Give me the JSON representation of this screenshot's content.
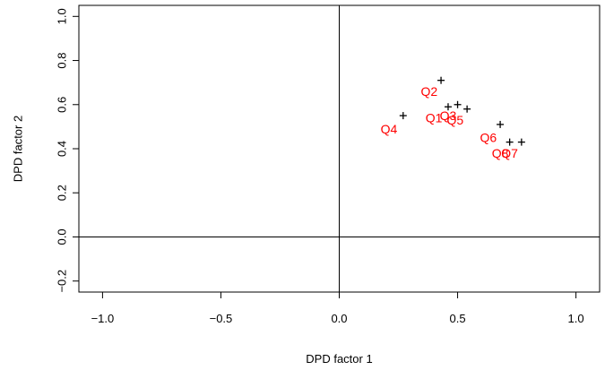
{
  "chart_data": {
    "type": "scatter",
    "title": "",
    "xlabel": "DPD factor 1",
    "ylabel": "DPD factor 2",
    "xlim": [
      -1.1,
      1.1
    ],
    "ylim": [
      -0.25,
      1.05
    ],
    "x_ticks": [
      -1.0,
      -0.5,
      0.0,
      0.5,
      1.0
    ],
    "x_tick_labels": [
      "−1.0",
      "−0.5",
      "0.0",
      "0.5",
      "1.0"
    ],
    "y_ticks": [
      -0.2,
      0.0,
      0.2,
      0.4,
      0.6,
      0.8,
      1.0
    ],
    "y_tick_labels": [
      "−0.2",
      "0.0",
      "0.2",
      "0.4",
      "0.6",
      "0.8",
      "1.0"
    ],
    "reference_lines": {
      "x": 0,
      "y": 0
    },
    "grid": false,
    "points": [
      {
        "x": 0.43,
        "y": 0.71
      },
      {
        "x": 0.46,
        "y": 0.59
      },
      {
        "x": 0.5,
        "y": 0.6
      },
      {
        "x": 0.54,
        "y": 0.58
      },
      {
        "x": 0.27,
        "y": 0.55
      },
      {
        "x": 0.68,
        "y": 0.51
      },
      {
        "x": 0.72,
        "y": 0.43
      },
      {
        "x": 0.77,
        "y": 0.43
      }
    ],
    "labels": [
      {
        "text": "Q2",
        "x": 0.38,
        "y": 0.66
      },
      {
        "text": "Q1",
        "x": 0.4,
        "y": 0.54
      },
      {
        "text": "Q3",
        "x": 0.46,
        "y": 0.55
      },
      {
        "text": "Q5",
        "x": 0.49,
        "y": 0.53
      },
      {
        "text": "Q4",
        "x": 0.21,
        "y": 0.49
      },
      {
        "text": "Q6",
        "x": 0.63,
        "y": 0.45
      },
      {
        "text": "Q8",
        "x": 0.68,
        "y": 0.38
      },
      {
        "text": "Q7",
        "x": 0.72,
        "y": 0.38
      }
    ],
    "colors": {
      "points": "#000000",
      "labels": "#ff0000",
      "axes": "#000000"
    }
  }
}
